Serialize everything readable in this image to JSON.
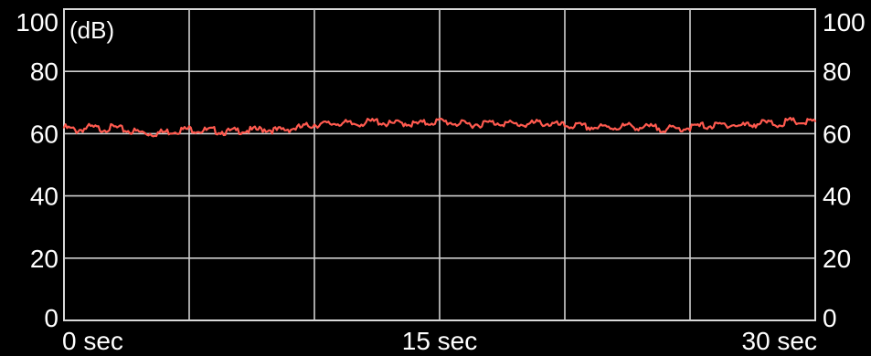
{
  "chart_data": {
    "type": "line",
    "unit_label": "(dB)",
    "y_ticks": [
      "0",
      "20",
      "40",
      "60",
      "80",
      "100"
    ],
    "x_tick_labels": [
      {
        "x": 0,
        "label": "0 sec"
      },
      {
        "x": 15,
        "label": "15 sec"
      },
      {
        "x": 30,
        "label": "30 sec"
      }
    ],
    "xlim": [
      0,
      30
    ],
    "ylim": [
      0,
      100
    ],
    "x_grid_values": [
      0,
      5,
      10,
      15,
      20,
      25,
      30
    ],
    "grid": true,
    "colors": {
      "background": "#000000",
      "grid": "#cfcfcf",
      "series": "#ff5a4f"
    },
    "series": [
      {
        "x": [
          0,
          0.5,
          1,
          1.5,
          2,
          2.5,
          3,
          3.5,
          4,
          4.5,
          5,
          5.5,
          6,
          6.5,
          7,
          7.5,
          8,
          8.5,
          9,
          9.5,
          10,
          10.5,
          11,
          11.5,
          12,
          12.5,
          13,
          13.5,
          14,
          14.5,
          15,
          15.5,
          16,
          16.5,
          17,
          17.5,
          18,
          18.5,
          19,
          19.5,
          20,
          20.5,
          21,
          21.5,
          22,
          22.5,
          23,
          23.5,
          24,
          24.5,
          25,
          25.5,
          26,
          26.5,
          27,
          27.5,
          28,
          28.5,
          29,
          29.5,
          30
        ],
        "values": [
          62,
          61,
          62,
          61.5,
          62,
          61,
          60.5,
          60,
          60.5,
          61,
          61.5,
          61,
          61,
          60.5,
          61,
          61,
          61.5,
          61,
          61.5,
          62,
          63,
          63,
          63.5,
          63,
          63.5,
          64,
          63,
          63.5,
          63,
          63.5,
          64,
          63.5,
          63,
          63,
          63.5,
          63.5,
          63,
          63,
          63.5,
          63,
          62.5,
          62.5,
          62,
          62,
          62,
          62.5,
          62,
          62,
          61.5,
          61.5,
          62,
          62.5,
          62.5,
          63,
          62.5,
          63,
          63.5,
          63,
          64,
          63.5,
          64
        ]
      }
    ]
  }
}
